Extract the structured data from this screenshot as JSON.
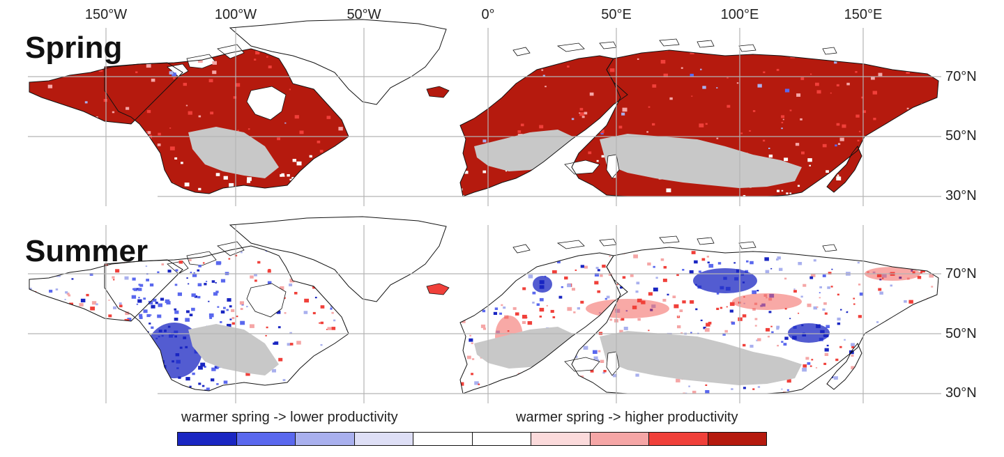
{
  "map": {
    "longitude_labels": [
      "150°W",
      "100°W",
      "50°W",
      "0°",
      "50°E",
      "100°E",
      "150°E"
    ],
    "latitude_labels": [
      "70°N",
      "50°N",
      "30°N"
    ],
    "panels": [
      {
        "title": "Spring",
        "dominant_response": "higher productivity"
      },
      {
        "title": "Summer",
        "dominant_response": "mixed"
      }
    ],
    "colors": {
      "land_outline": "#111111",
      "no_data_land": "#c8c8c8",
      "grid": "#b4b4b4",
      "strong_positive": "#b51a0e",
      "strong_negative": "#1a26c2"
    }
  },
  "legend": {
    "negative_label": "warmer spring -> lower productivity",
    "positive_label": "warmer spring -> higher productivity",
    "colors": [
      "#1a26c2",
      "#5a68ee",
      "#a9b0ee",
      "#dedff6",
      "#ffffff",
      "#ffffff",
      "#fbdadb",
      "#f5a6a6",
      "#f0403a",
      "#b51a0e"
    ]
  }
}
